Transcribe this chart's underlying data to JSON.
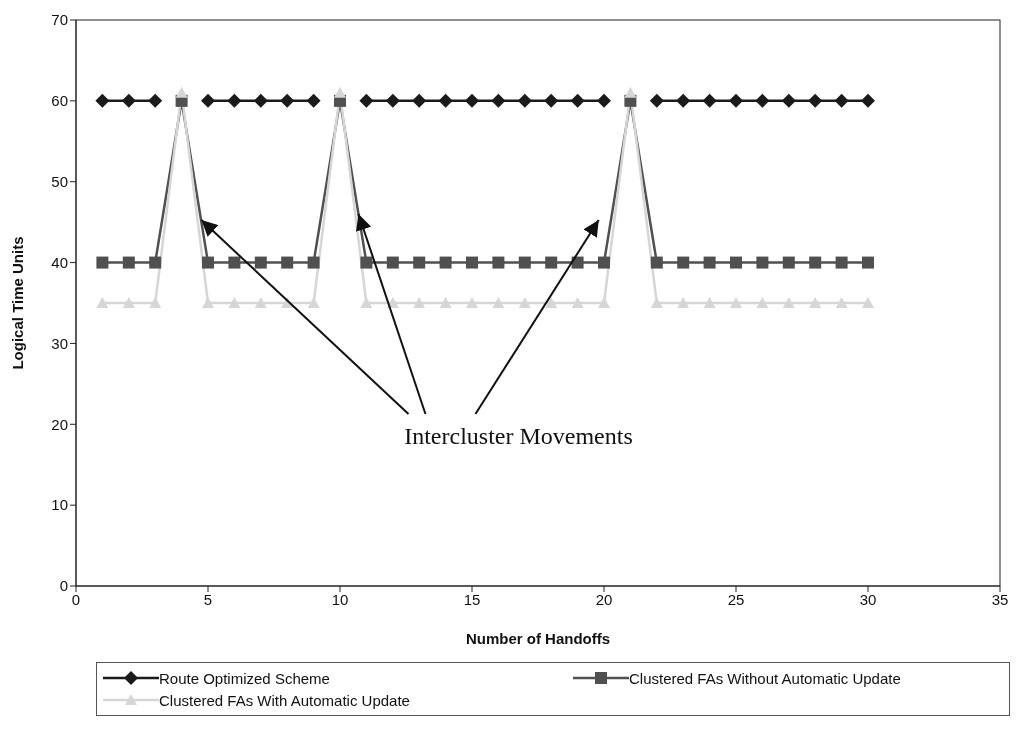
{
  "chart_data": {
    "type": "line",
    "xlabel": "Number of Handoffs",
    "ylabel": "Logical Time Units",
    "x": [
      1,
      2,
      3,
      4,
      5,
      6,
      7,
      8,
      9,
      10,
      11,
      12,
      13,
      14,
      15,
      16,
      17,
      18,
      19,
      20,
      21,
      22,
      23,
      24,
      25,
      26,
      27,
      28,
      29,
      30
    ],
    "series": [
      {
        "name": "Route Optimized Scheme",
        "color": "#1a1a1a",
        "marker": "diamond",
        "values": [
          60,
          60,
          60,
          null,
          60,
          60,
          60,
          60,
          60,
          null,
          60,
          60,
          60,
          60,
          60,
          60,
          60,
          60,
          60,
          60,
          null,
          60,
          60,
          60,
          60,
          60,
          60,
          60,
          60,
          60
        ]
      },
      {
        "name": "Clustered FAs Without Automatic Update",
        "color": "#505050",
        "marker": "square",
        "values": [
          40,
          40,
          40,
          60,
          40,
          40,
          40,
          40,
          40,
          60,
          40,
          40,
          40,
          40,
          40,
          40,
          40,
          40,
          40,
          40,
          60,
          40,
          40,
          40,
          40,
          40,
          40,
          40,
          40,
          40
        ]
      },
      {
        "name": "Clustered FAs With Automatic Update",
        "color": "#d6d6d6",
        "marker": "triangle",
        "values": [
          35,
          35,
          35,
          61,
          35,
          35,
          35,
          35,
          35,
          61,
          35,
          35,
          35,
          35,
          35,
          35,
          35,
          35,
          35,
          35,
          61,
          35,
          35,
          35,
          35,
          35,
          35,
          35,
          35,
          35
        ]
      }
    ],
    "xlim": [
      0,
      35
    ],
    "xticks": [
      0,
      5,
      10,
      15,
      20,
      25,
      30,
      35
    ],
    "ylim": [
      0,
      70
    ],
    "yticks": [
      0,
      10,
      20,
      30,
      40,
      50,
      60,
      70
    ],
    "grid": false,
    "legend": "bottom",
    "line_style": "solid",
    "annotations": [
      {
        "text": "Intercluster Movements",
        "x": 10.7,
        "y": 46
      }
    ]
  }
}
